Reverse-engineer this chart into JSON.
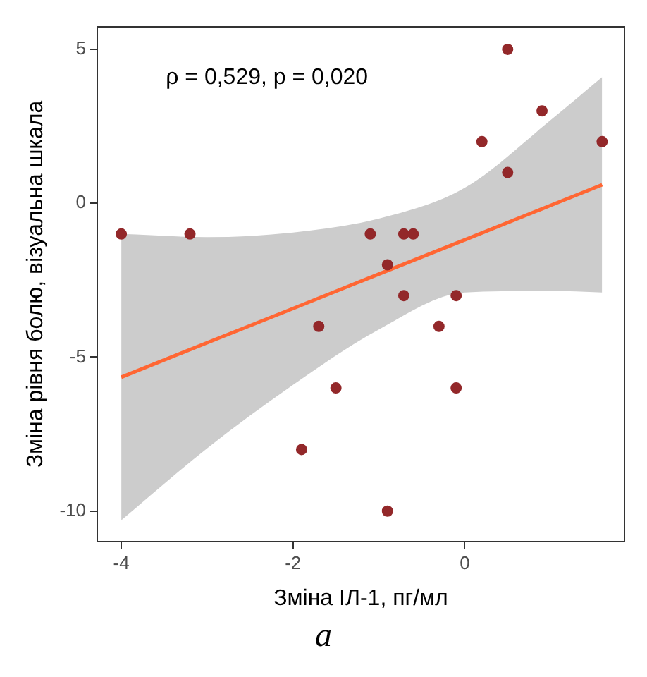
{
  "chart_data": {
    "type": "scatter",
    "xlabel": "Зміна ІЛ-1, пг/мл",
    "ylabel": "Зміна рівня болю, візуальна шкала",
    "annotations": [
      "ρ = 0,529, p = 0,020",
      "а"
    ],
    "xlim": [
      -4.28,
      1.86
    ],
    "ylim": [
      -11,
      5.74
    ],
    "xticks": [
      -4,
      -2,
      0
    ],
    "yticks": [
      -10,
      -5,
      0,
      5
    ],
    "grid": false,
    "legend": false,
    "series": [
      {
        "marker": "circle",
        "color": "#93282a",
        "x": [
          -4,
          -3.2,
          -1.1,
          -0.71,
          -0.6,
          -0.9,
          -0.71,
          -0.1,
          -1.7,
          -0.3,
          -1.5,
          -0.1,
          -1.9,
          -0.9,
          0.5,
          0.9,
          0.2,
          1.6,
          0.5
        ],
        "values": [
          -1,
          -1,
          -1,
          -1,
          -1,
          -2,
          -3,
          -3,
          -4,
          -4,
          -6,
          -6,
          -8,
          -10,
          5,
          3,
          2,
          2,
          1
        ]
      },
      {
        "type": "line",
        "color": "#ff6633",
        "line_style": "solid",
        "x": [
          -4,
          -3,
          -2,
          -1,
          0,
          1,
          1.6
        ],
        "values": [
          -5.65,
          -4.53,
          -3.42,
          -2.3,
          -1.19,
          -0.07,
          0.6
        ],
        "lower": [
          -10.3,
          -7.96,
          -5.9,
          -4.1,
          -2.9,
          -2.85,
          -2.9
        ],
        "upper": [
          -1,
          -1.1,
          -0.95,
          -0.5,
          0.5,
          2.7,
          4.1
        ]
      }
    ]
  }
}
